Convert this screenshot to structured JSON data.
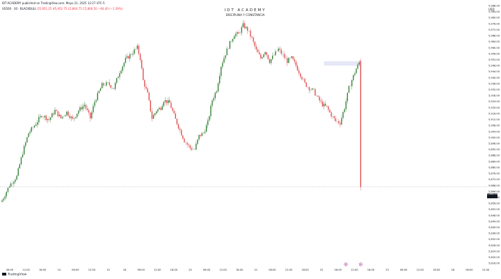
{
  "header": {
    "publisher_line": "IDT-ACADEMY published on TradingView.com, Mayo 21, 2025 12:27 UTC-5"
  },
  "symbol": {
    "name": "US500 · 30 · BLACKBULL",
    "ohlc": "O5,951.25 H5,952.75 L5,864.75 C5,866.50 −84.40 (−1.39%)"
  },
  "watermark": {
    "title": "IDT ACADEMY",
    "subtitle": "DISCIPLINA Y CONSTANCIA"
  },
  "currency": "USD",
  "last_price_label": "5,866.50",
  "footer": {
    "brand": "TradingView"
  },
  "colors": {
    "up": "#2e7d32",
    "down": "#e04848",
    "doji": "#a8a8a8",
    "zone": "#e6e8f7",
    "event_marker": "#b0409a"
  },
  "chart_data": {
    "type": "candlestick",
    "title": "",
    "xlabel": "",
    "ylabel": "",
    "ylim": [
      5812.5,
      5990
    ],
    "y_ticks": [
      "5,988.00",
      "5,984.00",
      "5,980.00",
      "5,976.00",
      "5,972.00",
      "5,968.00",
      "5,964.00",
      "5,960.00",
      "5,956.00",
      "5,952.00",
      "5,948.00",
      "5,944.00",
      "5,940.00",
      "5,936.00",
      "5,932.00",
      "5,928.00",
      "5,924.00",
      "5,920.00",
      "5,916.00",
      "5,912.00",
      "5,908.00",
      "5,904.00",
      "5,900.00",
      "5,896.00",
      "5,892.00",
      "5,888.00",
      "5,884.00",
      "5,880.00",
      "5,876.00",
      "5,872.00",
      "5,868.00",
      "5,864.00",
      "5,860.00",
      "5,856.00",
      "5,852.00",
      "5,848.00",
      "5,844.00",
      "5,840.00",
      "5,836.00",
      "5,832.00",
      "5,828.00",
      "5,824.00",
      "5,820.00",
      "5,816.00"
    ],
    "x_ticks": [
      "06:00",
      "12:00",
      "18:00",
      "14",
      "06:00",
      "12:00",
      "15",
      "16",
      "06:00",
      "12:00",
      "18:00",
      "20",
      "06:00",
      "12:00",
      "18:00",
      "21",
      "06:00",
      "12:00",
      "18:00",
      "22",
      "06:00",
      "12:00",
      "18:00",
      "23",
      "06:00",
      "12:00",
      "18:00",
      "26",
      "06:00",
      "12:00"
    ],
    "grid": false,
    "last_price": 5866.5,
    "horizontal_line": 5867,
    "zone": [
      5948,
      5951
    ],
    "close_path": [
      [
        0,
        5858
      ],
      [
        5,
        5868
      ],
      [
        10,
        5874
      ],
      [
        14,
        5890
      ],
      [
        18,
        5903
      ],
      [
        22,
        5908
      ],
      [
        27,
        5915
      ],
      [
        32,
        5912
      ],
      [
        36,
        5918
      ],
      [
        40,
        5913
      ],
      [
        44,
        5917
      ],
      [
        48,
        5912
      ],
      [
        52,
        5918
      ],
      [
        56,
        5922
      ],
      [
        60,
        5913
      ],
      [
        63,
        5924
      ],
      [
        68,
        5935
      ],
      [
        72,
        5936
      ],
      [
        76,
        5933
      ],
      [
        80,
        5944
      ],
      [
        84,
        5952
      ],
      [
        88,
        5956
      ],
      [
        92,
        5960
      ],
      [
        94,
        5953
      ],
      [
        96,
        5938
      ],
      [
        99,
        5929
      ],
      [
        102,
        5913
      ],
      [
        105,
        5918
      ],
      [
        108,
        5920
      ],
      [
        110,
        5925
      ],
      [
        114,
        5923
      ],
      [
        118,
        5912
      ],
      [
        121,
        5905
      ],
      [
        124,
        5898
      ],
      [
        128,
        5893
      ],
      [
        131,
        5892
      ],
      [
        134,
        5901
      ],
      [
        137,
        5903
      ],
      [
        140,
        5910
      ],
      [
        143,
        5925
      ],
      [
        146,
        5932
      ],
      [
        149,
        5948
      ],
      [
        152,
        5956
      ],
      [
        155,
        5963
      ],
      [
        158,
        5969
      ],
      [
        161,
        5969
      ],
      [
        164,
        5975
      ],
      [
        167,
        5972
      ],
      [
        170,
        5966
      ],
      [
        173,
        5958
      ],
      [
        176,
        5953
      ],
      [
        179,
        5958
      ],
      [
        182,
        5951
      ],
      [
        185,
        5955
      ],
      [
        188,
        5959
      ],
      [
        191,
        5955
      ],
      [
        194,
        5951
      ],
      [
        197,
        5953
      ],
      [
        200,
        5948
      ],
      [
        203,
        5942
      ],
      [
        206,
        5936
      ],
      [
        209,
        5933
      ],
      [
        212,
        5931
      ],
      [
        215,
        5926
      ],
      [
        218,
        5922
      ],
      [
        221,
        5920
      ],
      [
        224,
        5915
      ],
      [
        227,
        5911
      ],
      [
        230,
        5910
      ],
      [
        233,
        5920
      ],
      [
        236,
        5933
      ],
      [
        239,
        5941
      ],
      [
        241,
        5946
      ],
      [
        243,
        5950
      ],
      [
        244,
        5867
      ]
    ]
  }
}
